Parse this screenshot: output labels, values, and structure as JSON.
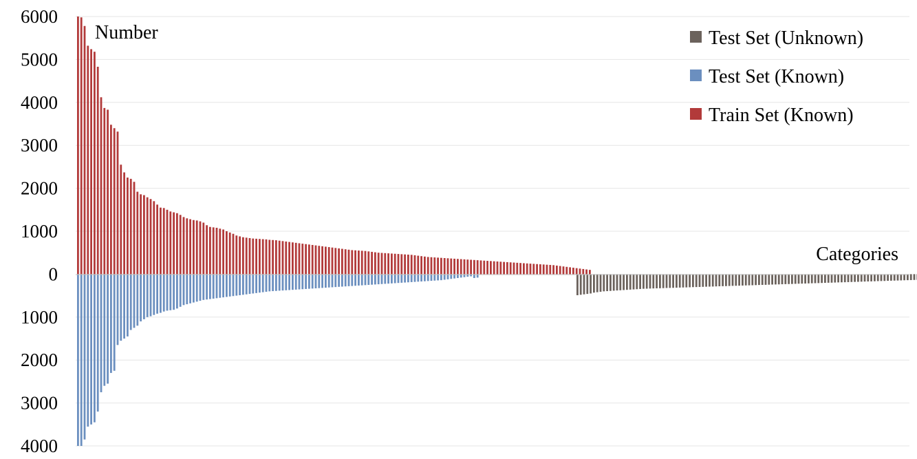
{
  "chart_data": {
    "type": "bar",
    "title": "",
    "ylabel": "Number",
    "xlabel": "Categories",
    "ylim": [
      -4000,
      6000
    ],
    "yticks": [
      {
        "value": 6000,
        "label": "6000"
      },
      {
        "value": 5000,
        "label": "5000"
      },
      {
        "value": 4000,
        "label": "4000"
      },
      {
        "value": 3000,
        "label": "3000"
      },
      {
        "value": 2000,
        "label": "2000"
      },
      {
        "value": 1000,
        "label": "1000"
      },
      {
        "value": 0,
        "label": "0"
      },
      {
        "value": -1000,
        "label": "1000"
      },
      {
        "value": -2000,
        "label": "2000"
      },
      {
        "value": -3000,
        "label": "3000"
      },
      {
        "value": -4000,
        "label": "4000"
      }
    ],
    "grid": true,
    "legend_position": "top-right",
    "series": [
      {
        "name": "Test Set (Unknown)",
        "color": "#6b625c",
        "direction": "down",
        "values": [
          490,
          480,
          470,
          460,
          450,
          430,
          420,
          410,
          400,
          395,
          390,
          385,
          380,
          375,
          370,
          365,
          360,
          355,
          350,
          345,
          340,
          338,
          335,
          332,
          330,
          328,
          325,
          322,
          320,
          318,
          315,
          312,
          310,
          308,
          305,
          302,
          300,
          298,
          295,
          292,
          290,
          288,
          285,
          282,
          280,
          278,
          275,
          272,
          270,
          268,
          265,
          262,
          260,
          258,
          255,
          252,
          250,
          248,
          245,
          242,
          240,
          238,
          235,
          232,
          230,
          228,
          225,
          222,
          220,
          218,
          215,
          212,
          210,
          208,
          205,
          202,
          200,
          198,
          195,
          192,
          190,
          188,
          185,
          182,
          180,
          178,
          175,
          172,
          170,
          168,
          165,
          162,
          160,
          158,
          155,
          152,
          150,
          148,
          145,
          142,
          140,
          138,
          135,
          132,
          130,
          128,
          126,
          124,
          122,
          120
        ]
      },
      {
        "name": "Test Set (Known)",
        "color": "#6b8fbf",
        "direction": "down",
        "values": [
          4000,
          4000,
          3850,
          3550,
          3500,
          3450,
          3200,
          2750,
          2600,
          2550,
          2300,
          2250,
          1650,
          1550,
          1500,
          1450,
          1300,
          1250,
          1200,
          1100,
          1050,
          1000,
          980,
          950,
          920,
          900,
          870,
          850,
          840,
          830,
          800,
          760,
          720,
          700,
          680,
          660,
          640,
          620,
          600,
          590,
          580,
          570,
          560,
          550,
          540,
          530,
          520,
          510,
          500,
          490,
          480,
          470,
          460,
          450,
          440,
          430,
          420,
          410,
          400,
          395,
          390,
          385,
          380,
          375,
          370,
          365,
          360,
          355,
          350,
          345,
          340,
          335,
          330,
          325,
          320,
          315,
          310,
          305,
          300,
          295,
          290,
          285,
          280,
          275,
          270,
          265,
          260,
          255,
          250,
          245,
          240,
          235,
          230,
          225,
          220,
          215,
          210,
          205,
          200,
          195,
          190,
          185,
          180,
          175,
          170,
          165,
          160,
          155,
          150,
          145,
          140,
          130,
          120,
          110,
          100,
          90,
          80,
          70,
          60,
          50,
          90,
          80
        ]
      },
      {
        "name": "Train Set (Known)",
        "color": "#b23a3a",
        "direction": "up",
        "values": [
          6000,
          5980,
          5780,
          5320,
          5240,
          5180,
          4830,
          4120,
          3870,
          3830,
          3480,
          3400,
          3320,
          2550,
          2370,
          2250,
          2220,
          2150,
          1920,
          1860,
          1840,
          1790,
          1750,
          1700,
          1620,
          1550,
          1540,
          1500,
          1460,
          1440,
          1420,
          1380,
          1330,
          1300,
          1280,
          1260,
          1250,
          1230,
          1200,
          1140,
          1100,
          1090,
          1080,
          1060,
          1040,
          1000,
          970,
          940,
          900,
          880,
          860,
          850,
          840,
          830,
          825,
          820,
          815,
          810,
          800,
          795,
          790,
          780,
          770,
          760,
          750,
          740,
          730,
          720,
          710,
          700,
          690,
          680,
          670,
          660,
          650,
          640,
          630,
          620,
          610,
          600,
          590,
          580,
          570,
          560,
          555,
          550,
          545,
          540,
          530,
          520,
          510,
          500,
          495,
          490,
          485,
          480,
          475,
          470,
          465,
          460,
          455,
          450,
          440,
          430,
          420,
          410,
          400,
          395,
          390,
          385,
          380,
          375,
          370,
          365,
          360,
          355,
          350,
          345,
          340,
          335,
          330,
          325,
          320,
          315,
          310,
          305,
          300,
          295,
          290,
          285,
          280,
          275,
          270,
          265,
          260,
          255,
          250,
          245,
          240,
          235,
          230,
          225,
          220,
          215,
          210,
          200,
          190,
          180,
          170,
          160,
          150,
          140,
          130,
          120,
          110,
          100
        ]
      }
    ]
  }
}
